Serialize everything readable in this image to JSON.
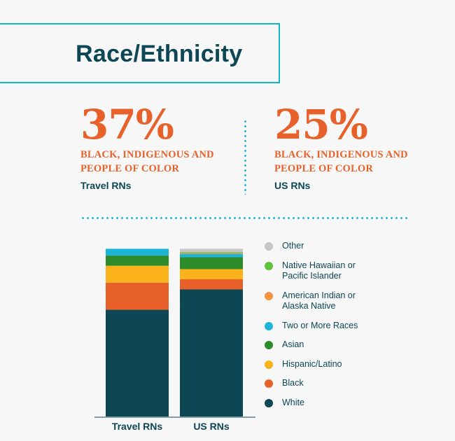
{
  "header": {
    "title": "Race/Ethnicity"
  },
  "stats": [
    {
      "percent": "37%",
      "description": "BLACK, INDIGENOUS AND PEOPLE OF COLOR",
      "group": "Travel RNs"
    },
    {
      "percent": "25%",
      "description": "BLACK, INDIGENOUS AND PEOPLE OF COLOR",
      "group": "US RNs"
    }
  ],
  "chart_data": {
    "type": "bar",
    "stacked": true,
    "categories": [
      "Travel RNs",
      "US RNs"
    ],
    "ylim": [
      0,
      100
    ],
    "legend_position": "right",
    "series": [
      {
        "name": "White",
        "color": "#0d4654",
        "values": [
          63,
          75
        ]
      },
      {
        "name": "Black",
        "color": "#e8602a",
        "values": [
          16,
          6
        ]
      },
      {
        "name": "Hispanic/Latino",
        "color": "#fbb21b",
        "values": [
          10,
          6
        ]
      },
      {
        "name": "Asian",
        "color": "#2e8b2a",
        "values": [
          6,
          7
        ]
      },
      {
        "name": "Two or More Races",
        "color": "#1bb5d8",
        "values": [
          4,
          2
        ]
      },
      {
        "name": "American Indian or Alaska Native",
        "color": "#f7923f",
        "values": [
          0,
          0.5
        ]
      },
      {
        "name": "Native Hawaiian or Pacific Islander",
        "color": "#5cc43a",
        "values": [
          0,
          0.5
        ]
      },
      {
        "name": "Other",
        "color": "#c6c6c6",
        "values": [
          0,
          2
        ]
      }
    ]
  }
}
